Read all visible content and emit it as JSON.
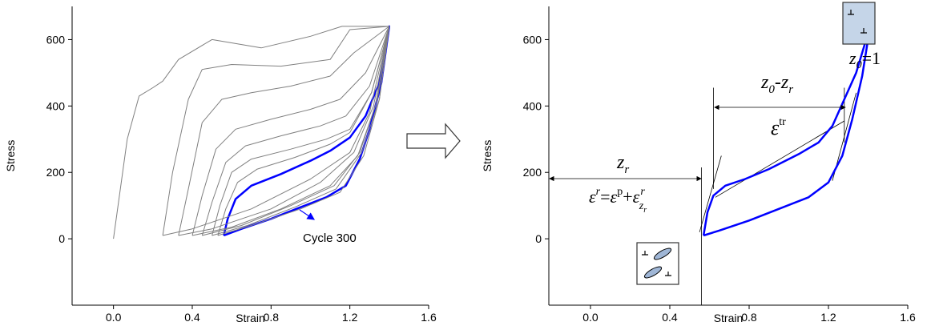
{
  "chart_data": [
    {
      "type": "line",
      "xlabel": "Strain",
      "ylabel": "Stress",
      "xlim": [
        -0.21,
        1.6
      ],
      "ylim": [
        -200,
        700
      ],
      "xticks": [
        {
          "value": 0,
          "label": "0.0"
        },
        0.4,
        0.8,
        1.2,
        1.6
      ],
      "yticks": [
        0,
        200,
        400,
        600
      ],
      "annotation": "Cycle 300",
      "series": [
        {
          "color": "#808080",
          "linewidth": 1,
          "x": [
            0,
            0.07,
            0.13,
            0.2,
            0.25,
            0.33,
            0.5,
            0.75,
            1.0,
            1.16,
            1.4
          ],
          "values": [
            0,
            300,
            430,
            455,
            475,
            540,
            600,
            575,
            610,
            640,
            640
          ]
        },
        {
          "color": "#808080",
          "linewidth": 1,
          "x": [
            0.25,
            0.3,
            0.38,
            0.45,
            0.6,
            0.85,
            1.1,
            1.2,
            1.4,
            1.3,
            1.2,
            1.0,
            0.7,
            0.4,
            0.25
          ],
          "values": [
            10,
            200,
            420,
            510,
            525,
            520,
            540,
            630,
            640,
            380,
            260,
            180,
            90,
            30,
            10
          ]
        },
        {
          "color": "#808080",
          "linewidth": 1,
          "x": [
            0.33,
            0.38,
            0.45,
            0.55,
            0.7,
            0.9,
            1.1,
            1.22,
            1.4,
            1.32,
            1.22,
            1.05,
            0.8,
            0.5,
            0.33
          ],
          "values": [
            10,
            150,
            350,
            420,
            440,
            460,
            490,
            560,
            640,
            400,
            260,
            170,
            90,
            30,
            10
          ]
        },
        {
          "color": "#808080",
          "linewidth": 1,
          "x": [
            0.4,
            0.45,
            0.52,
            0.62,
            0.8,
            1.0,
            1.15,
            1.28,
            1.4,
            1.33,
            1.24,
            1.1,
            0.85,
            0.6,
            0.4
          ],
          "values": [
            10,
            130,
            270,
            330,
            360,
            390,
            420,
            500,
            640,
            400,
            250,
            160,
            90,
            35,
            10
          ]
        },
        {
          "color": "#808080",
          "linewidth": 1,
          "x": [
            0.45,
            0.5,
            0.57,
            0.67,
            0.85,
            1.05,
            1.18,
            1.3,
            1.4,
            1.34,
            1.25,
            1.12,
            0.9,
            0.65,
            0.45
          ],
          "values": [
            10,
            110,
            230,
            280,
            310,
            340,
            370,
            460,
            640,
            420,
            260,
            160,
            100,
            40,
            10
          ]
        },
        {
          "color": "#808080",
          "linewidth": 1,
          "x": [
            0.5,
            0.54,
            0.6,
            0.7,
            0.9,
            1.08,
            1.2,
            1.31,
            1.4,
            1.35,
            1.26,
            1.13,
            0.92,
            0.68,
            0.5
          ],
          "values": [
            10,
            100,
            200,
            240,
            270,
            300,
            330,
            440,
            640,
            420,
            260,
            150,
            95,
            40,
            10
          ]
        },
        {
          "color": "#808080",
          "linewidth": 1,
          "x": [
            0.53,
            0.57,
            0.63,
            0.73,
            0.92,
            1.1,
            1.2,
            1.31,
            1.4,
            1.35,
            1.27,
            1.15,
            0.95,
            0.7,
            0.53
          ],
          "values": [
            10,
            90,
            170,
            210,
            245,
            285,
            320,
            440,
            640,
            420,
            250,
            140,
            90,
            40,
            10
          ]
        },
        {
          "color": "#0000ff",
          "linewidth": 2.5,
          "x": [
            0.56,
            0.58,
            0.62,
            0.7,
            0.85,
            1.0,
            1.1,
            1.2,
            1.28,
            1.35,
            1.4,
            1.36,
            1.3,
            1.25,
            1.18,
            1.08,
            0.95,
            0.8,
            0.65,
            0.56
          ],
          "values": [
            10,
            60,
            120,
            160,
            195,
            235,
            265,
            305,
            370,
            470,
            640,
            470,
            330,
            240,
            160,
            125,
            95,
            60,
            30,
            10
          ]
        }
      ]
    },
    {
      "type": "line",
      "xlabel": "Strain",
      "ylabel": "Stress",
      "xlim": [
        -0.21,
        1.6
      ],
      "ylim": [
        -200,
        700
      ],
      "xticks": [
        {
          "value": 0,
          "label": "0.0"
        },
        0.4,
        0.8,
        1.2,
        1.6
      ],
      "yticks": [
        0,
        200,
        400,
        600
      ],
      "annotations": {
        "zr": [
          "z",
          "r"
        ],
        "strain_sum": [
          "ε",
          "r",
          "=",
          "ε",
          "p",
          "+",
          "ε",
          "r",
          "z",
          "r"
        ],
        "z0_minus_zr": [
          "z",
          "0",
          "-",
          "z",
          "r"
        ],
        "eps_tr": [
          "ε",
          "tr"
        ],
        "z0_eq": [
          "z",
          "0",
          "=1"
        ]
      },
      "series": [
        {
          "color": "#0000ff",
          "linewidth": 2.5,
          "x": [
            0.57,
            0.59,
            0.62,
            0.68,
            0.78,
            0.9,
            1.05,
            1.15,
            1.22,
            1.28,
            1.34,
            1.41,
            1.37,
            1.32,
            1.27,
            1.2,
            1.1,
            0.95,
            0.8,
            0.65,
            0.57
          ],
          "values": [
            10,
            80,
            130,
            160,
            180,
            210,
            255,
            290,
            340,
            420,
            500,
            640,
            490,
            360,
            250,
            170,
            125,
            90,
            55,
            25,
            10
          ]
        },
        {
          "color": "#000000",
          "linewidth": 0.8,
          "x": [
            0.55,
            0.66
          ],
          "values": [
            20,
            250
          ]
        },
        {
          "color": "#000000",
          "linewidth": 0.8,
          "x": [
            0.63,
            1.28
          ],
          "values": [
            125,
            355
          ]
        },
        {
          "color": "#000000",
          "linewidth": 0.8,
          "x": [
            1.22,
            1.34
          ],
          "values": [
            175,
            440
          ]
        },
        {
          "color": "#000000",
          "linewidth": 0.8,
          "x": [
            0.56,
            0.56
          ],
          "values": [
            -200,
            215
          ]
        },
        {
          "color": "#000000",
          "linewidth": 0.8,
          "x": [
            0.62,
            0.62
          ],
          "values": [
            150,
            455
          ]
        },
        {
          "color": "#000000",
          "linewidth": 0.8,
          "x": [
            1.28,
            1.28
          ],
          "values": [
            290,
            455
          ]
        }
      ]
    }
  ]
}
